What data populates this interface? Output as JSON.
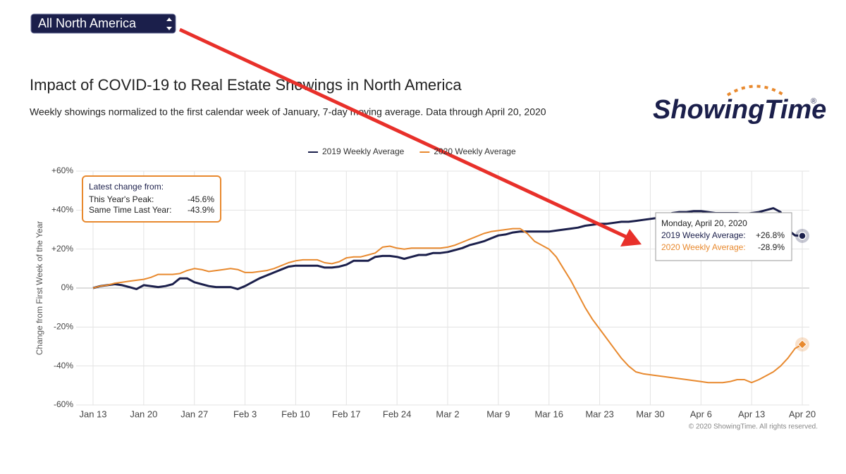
{
  "dropdown": "All North America",
  "logo": {
    "name": "ShowingTime",
    "mark": "®"
  },
  "copyright": "© 2020 ShowingTime. All rights reserved.",
  "chart_data": {
    "type": "line",
    "title": "Impact of COVID-19 to Real Estate Showings in North America",
    "subtitle": "Weekly showings normalized to the first calendar week of January, 7-day moving average. Data through April 20, 2020",
    "y_axis_label": "Change from First Week of the Year",
    "categories": [
      "Jan 13",
      null,
      null,
      null,
      null,
      null,
      null,
      "Jan 20",
      null,
      null,
      null,
      null,
      null,
      null,
      "Jan 27",
      null,
      null,
      null,
      null,
      null,
      null,
      "Feb 3",
      null,
      null,
      null,
      null,
      null,
      null,
      "Feb 10",
      null,
      null,
      null,
      null,
      null,
      null,
      "Feb 17",
      null,
      null,
      null,
      null,
      null,
      null,
      "Feb 24",
      null,
      null,
      null,
      null,
      null,
      null,
      "Mar 2",
      null,
      null,
      null,
      null,
      null,
      null,
      "Mar 9",
      null,
      null,
      null,
      null,
      null,
      null,
      "Mar 16",
      null,
      null,
      null,
      null,
      null,
      null,
      "Mar 23",
      null,
      null,
      null,
      null,
      null,
      null,
      "Mar 30",
      null,
      null,
      null,
      null,
      null,
      null,
      "Apr 6",
      null,
      null,
      null,
      null,
      null,
      null,
      "Apr 13",
      null,
      null,
      null,
      null,
      null,
      null,
      "Apr 20"
    ],
    "series": [
      {
        "name": "2019 Weekly Average",
        "color": "#1b1f4b",
        "values": [
          0,
          1,
          1.5,
          2,
          1.5,
          0.5,
          -0.5,
          1.5,
          1,
          0.5,
          1,
          2,
          5,
          5,
          3,
          2,
          1,
          0.5,
          0.5,
          0.5,
          -0.5,
          1,
          3,
          5,
          6.5,
          8,
          9.5,
          11,
          11.5,
          11.5,
          11.5,
          11.5,
          10.5,
          10.5,
          11,
          12,
          14,
          14,
          14,
          16,
          16.5,
          16.5,
          16,
          15,
          16,
          17,
          17,
          18,
          18,
          18.5,
          19.5,
          20.5,
          22,
          23,
          24,
          25.5,
          27,
          27.5,
          28.5,
          29,
          29,
          29,
          29,
          29,
          29.5,
          30,
          30.5,
          31,
          32,
          32.5,
          33,
          33,
          33.5,
          34,
          34,
          34.5,
          35,
          35.5,
          36,
          37,
          38.5,
          39,
          39,
          39.5,
          39.5,
          39,
          38.5,
          38.5,
          38.5,
          38.5,
          38,
          38.5,
          39,
          40,
          41,
          39,
          30,
          27,
          26.8
        ]
      },
      {
        "name": "2020 Weekly Average",
        "color": "#e8892e",
        "values": [
          0,
          1,
          1.5,
          2.5,
          3,
          3.5,
          4,
          4.5,
          5.5,
          7,
          7,
          7,
          7.5,
          9,
          10,
          9.5,
          8.5,
          9,
          9.5,
          10,
          9.5,
          8,
          8,
          8.5,
          9,
          10,
          11.5,
          13,
          14,
          14.5,
          14.5,
          14.5,
          13,
          12.5,
          13.5,
          15.5,
          16,
          16,
          17,
          18,
          21,
          21.5,
          20.5,
          20,
          20.5,
          20.5,
          20.5,
          20.5,
          20.5,
          21,
          22,
          23.5,
          25,
          26.5,
          28,
          29,
          29.5,
          30,
          30.5,
          30.5,
          28,
          24,
          22,
          20,
          16,
          10,
          4,
          -3,
          -10,
          -16,
          -21,
          -26,
          -31,
          -36,
          -40,
          -43,
          -44,
          -44.5,
          -45,
          -45.5,
          -46,
          -46.5,
          -47,
          -47.5,
          -48,
          -48.5,
          -48.5,
          -48.5,
          -48,
          -47,
          -47,
          -48.5,
          -47,
          -45,
          -43,
          -40,
          -36,
          -31,
          -28.9
        ]
      }
    ],
    "ylim": [
      -60,
      60
    ],
    "yticks": [
      {
        "value": -60,
        "label": "-60%"
      },
      {
        "value": -40,
        "label": "-40%"
      },
      {
        "value": -20,
        "label": "-20%"
      },
      {
        "value": 0,
        "label": "0%"
      },
      {
        "value": 20,
        "label": "+20%"
      },
      {
        "value": 40,
        "label": "+40%"
      },
      {
        "value": 60,
        "label": "+60%"
      }
    ],
    "grid": true,
    "legend": "top",
    "annotation": {
      "title": "Latest change from:",
      "rows": [
        [
          "This Year's Peak:",
          "-45.6%"
        ],
        [
          "Same Time Last Year:",
          "-43.9%"
        ]
      ]
    },
    "tooltip": {
      "date": "Monday, April 20, 2020",
      "rows": [
        [
          "2019 Weekly Average:",
          "+26.8%"
        ],
        [
          "2020 Weekly Average:",
          "-28.9%"
        ]
      ]
    }
  }
}
